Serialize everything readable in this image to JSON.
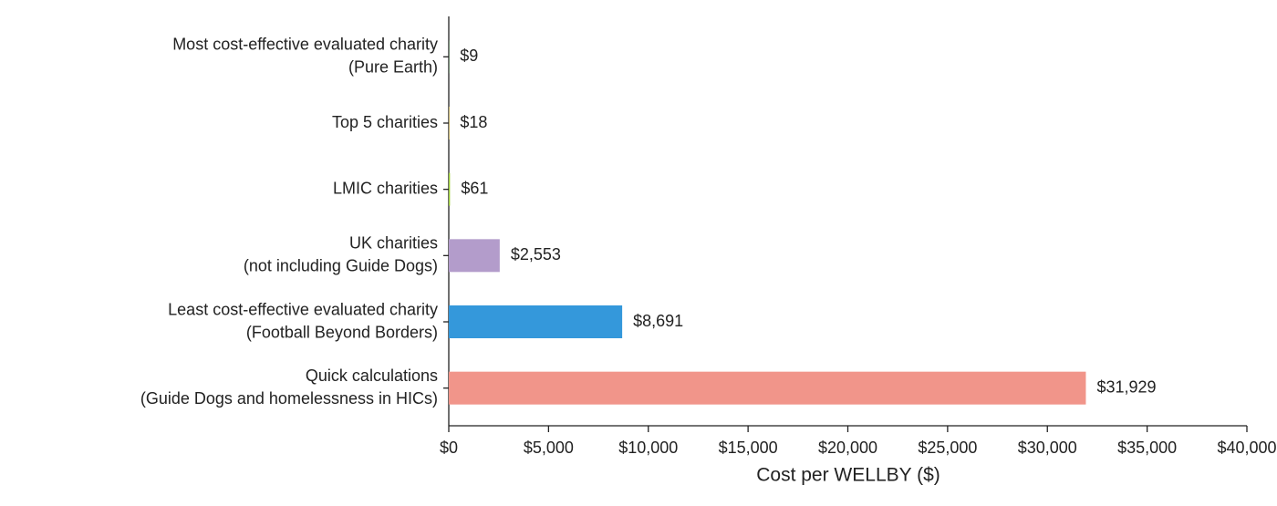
{
  "chart_data": {
    "type": "bar",
    "orientation": "horizontal",
    "categories": [
      [
        "Most cost-effective evaluated charity",
        "(Pure Earth)"
      ],
      [
        "Top 5 charities"
      ],
      [
        "LMIC charities"
      ],
      [
        "UK charities",
        "(not including Guide Dogs)"
      ],
      [
        "Least cost-effective evaluated charity",
        "(Football Beyond Borders)"
      ],
      [
        "Quick calculations",
        "(Guide Dogs and homelessness in HICs)"
      ]
    ],
    "values": [
      9,
      18,
      61,
      2553,
      8691,
      31929
    ],
    "value_labels": [
      "$9",
      "$18",
      "$61",
      "$2,553",
      "$8,691",
      "$31,929"
    ],
    "colors": [
      "#2ca02c",
      "#f0c419",
      "#9acd32",
      "#b39ccb",
      "#3498db",
      "#f1958a"
    ],
    "xlabel": "Cost per WELLBY ($)",
    "xlim": [
      0,
      40000
    ],
    "xticks": [
      {
        "value": 0,
        "label": "$0"
      },
      {
        "value": 5000,
        "label": "$5,000"
      },
      {
        "value": 10000,
        "label": "$10,000"
      },
      {
        "value": 15000,
        "label": "$15,000"
      },
      {
        "value": 20000,
        "label": "$20,000"
      },
      {
        "value": 25000,
        "label": "$25,000"
      },
      {
        "value": 30000,
        "label": "$30,000"
      },
      {
        "value": 35000,
        "label": "$35,000"
      },
      {
        "value": 40000,
        "label": "$40,000"
      }
    ]
  }
}
